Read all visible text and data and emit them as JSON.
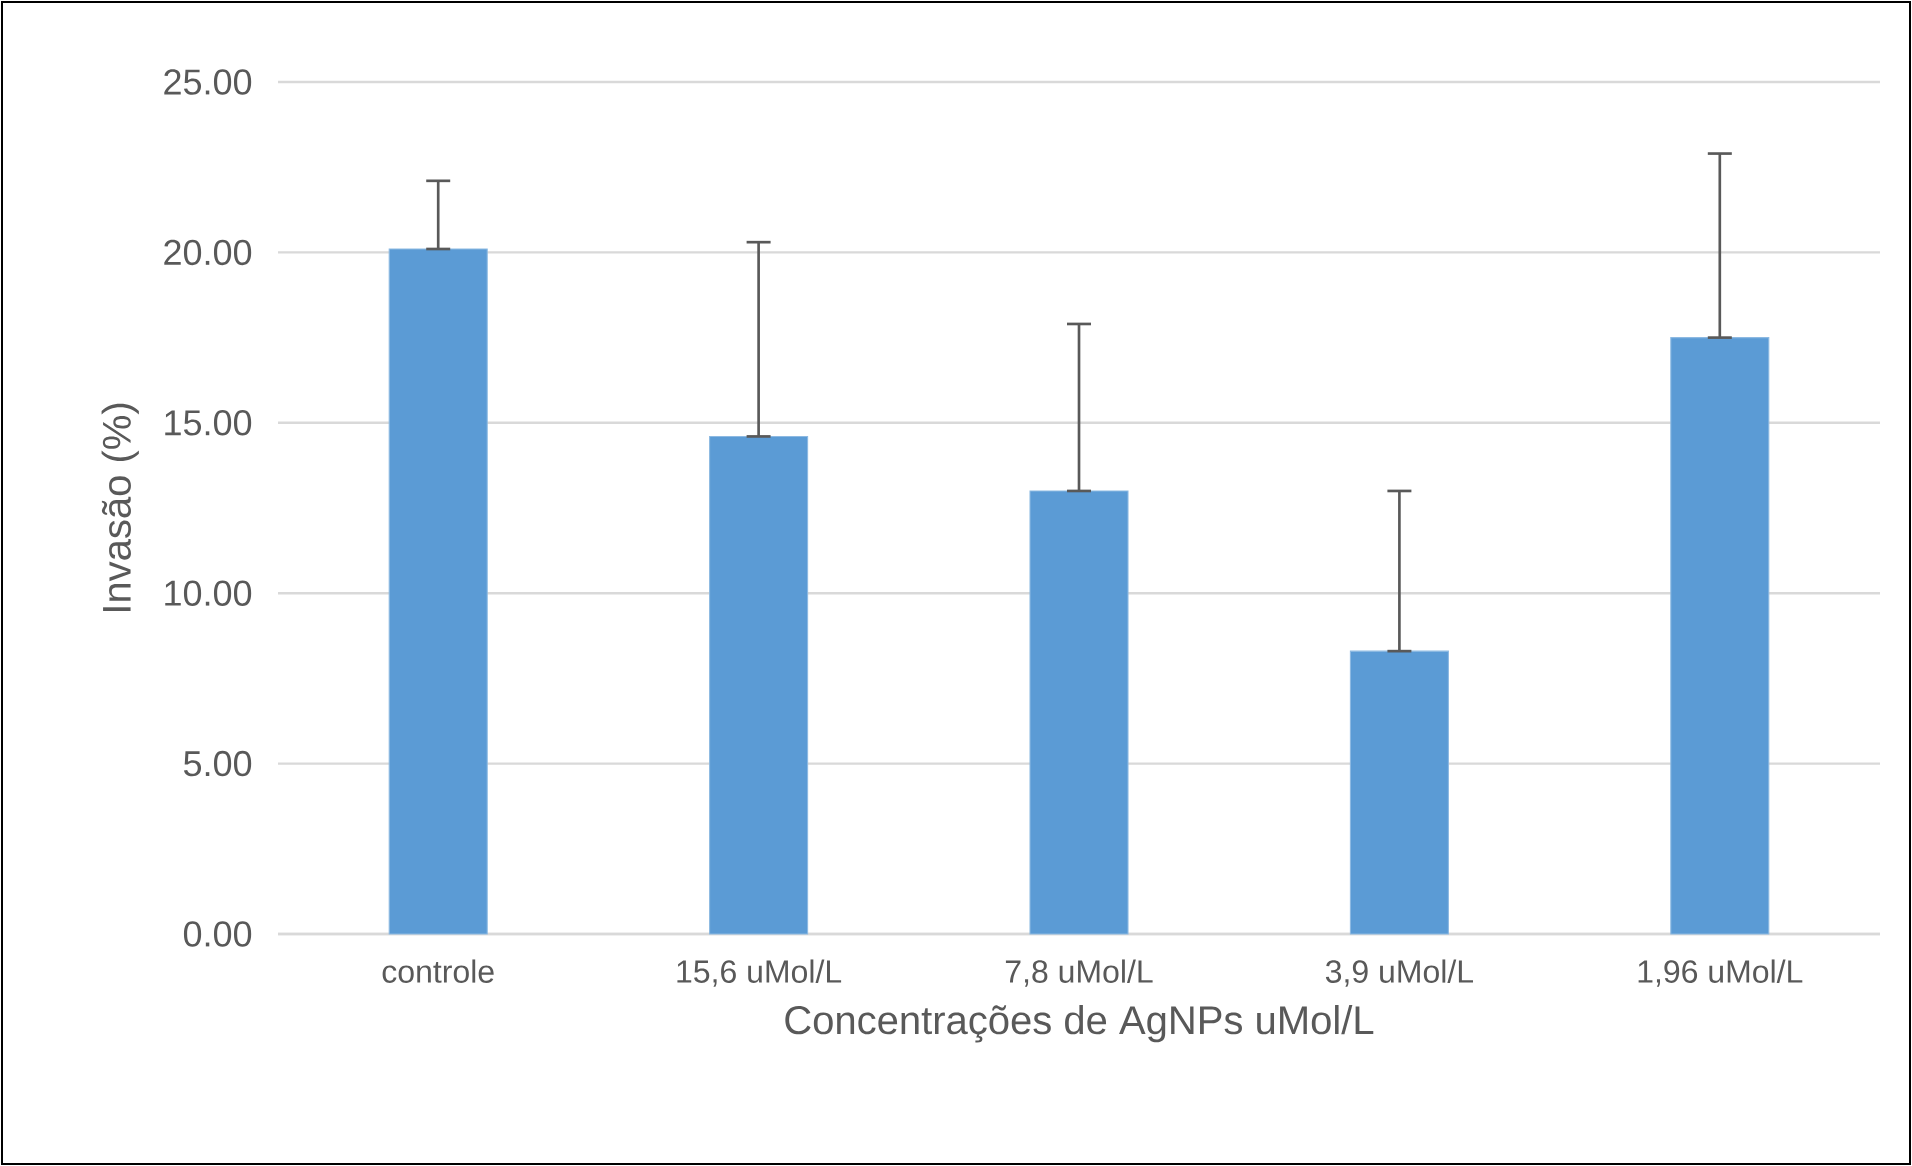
{
  "chart_data": {
    "type": "bar",
    "xlabel": "Concentrações de AgNPs uMol/L",
    "ylabel": "Invasão (%)",
    "categories": [
      "controle",
      "15,6 uMol/L",
      "7,8 uMol/L",
      "3,9 uMol/L",
      "1,96 uMol/L"
    ],
    "values": [
      20.1,
      14.6,
      13.0,
      8.3,
      17.5
    ],
    "errors": [
      [
        20.1,
        22.1
      ],
      [
        14.6,
        20.3
      ],
      [
        13.0,
        17.9
      ],
      [
        8.3,
        13.0
      ],
      [
        17.5,
        22.9
      ]
    ],
    "color": "#5b9bd5",
    "ylim": [
      0,
      25
    ],
    "yticks": [
      {
        "value": 0,
        "label": "0.00"
      },
      {
        "value": 5,
        "label": "5.00"
      },
      {
        "value": 10,
        "label": "10.00"
      },
      {
        "value": 15,
        "label": "15.00"
      },
      {
        "value": 20,
        "label": "20.00"
      },
      {
        "value": 25,
        "label": "25.00"
      }
    ],
    "grid": "y"
  }
}
